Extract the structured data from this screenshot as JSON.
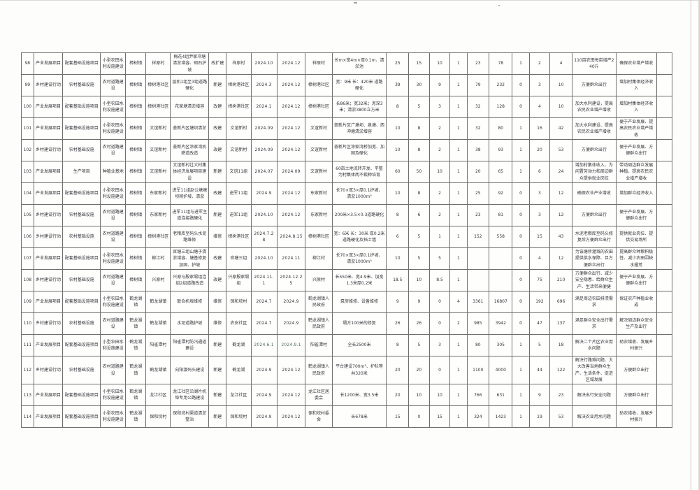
{
  "document": {
    "kind": "scanned-project-schedule-table",
    "visible_row_range": "98-114",
    "page_background": "#fdfdfc",
    "ink_color": "#34343a",
    "grid_color": "#6f6f6d"
  },
  "table": {
    "col_names": [
      "col-no",
      "col-project-type",
      "col-project-category",
      "col-construction-type",
      "col-town",
      "col-village",
      "col-construction-content",
      "col-build-nature",
      "col-location",
      "col-start-date",
      "col-end-date",
      "col-implementing-unit",
      "col-scale-spec",
      "col-num-1",
      "col-num-2",
      "col-num-3",
      "col-num-4",
      "col-num-5",
      "col-num-6",
      "col-num-7",
      "col-num-8",
      "col-num-9",
      "col-benefit-1",
      "col-benefit-2",
      "col-remark"
    ],
    "rows": [
      [
        "98",
        "产业发展项目",
        "配套基础设施项目",
        "小型农田水利设施建设",
        "樟树镇",
        "祥原村",
        "梅花4组尹家冲塘清淤增容、砌石护坡",
        "改扩建",
        "祥原村",
        "2024.10",
        "2024.12",
        "祥原村",
        "长m×宽4m×厚0.1m、清淤池",
        "25",
        "15",
        "10",
        "1",
        "23",
        "78",
        "1",
        "2",
        "4",
        "110亩农田每亩增产240斤",
        "确保农业增产增收",
        ""
      ],
      [
        "99",
        "乡村建设行动",
        "农村基础设施",
        "农村道路建设",
        "樟树镇",
        "樟树港社区",
        "层机1组至3组道路硬化",
        "新建",
        "樟树港社区",
        "2024.3",
        "2024.12",
        "樟树港社区",
        "宽：9米 长：420米 道路硬化",
        "39",
        "30",
        "9",
        "1",
        "79",
        "232",
        "0",
        "3",
        "10",
        "方便群众出行",
        "增加村集体经济收入",
        ""
      ],
      [
        "100",
        "产业发展项目",
        "配套基础设施项目",
        "小型农田水利设施建设",
        "樟树镇",
        "樟树港社区",
        "花家塘清淤增容",
        "改建",
        "樟树港社区",
        "2024.1",
        "2024.12",
        "樟树港社区",
        "长86米；宽32米；泥深3米；清淤3800立方米",
        "8",
        "5",
        "3",
        "1",
        "32",
        "128",
        "0",
        "4",
        "10",
        "加大水利建设，提高农民农业增产增收",
        "增加村集体经济收入",
        ""
      ],
      [
        "101",
        "产业发展项目",
        "配套基础设施项目",
        "小型农田水利设施建设",
        "樟树镇",
        "文谊新村",
        "荟新片区塘坝清淤",
        "改建",
        "文谊新村",
        "2024.09",
        "2024.12",
        "文谊新村",
        "荟新片区广塘坝、泉塘、西冲塘清淤增容",
        "10",
        "8",
        "2",
        "1",
        "32",
        "80",
        "1",
        "16",
        "42",
        "加大水利建设、提高农民农业增产增收",
        "便于产业发展、提高农民农业增产增收",
        ""
      ],
      [
        "102",
        "乡村建设行动",
        "农村基础设施",
        "农村道路建设",
        "樟树镇",
        "文谊新村",
        "荟新片区涂家湾机耕道改造",
        "改建",
        "文谊新村",
        "2024.09",
        "2024.12",
        "文谊新村",
        "荟新片区涂家湾桥加宽、加固及硬化",
        "10",
        "8",
        "2",
        "1",
        "38",
        "93",
        "1",
        "20",
        "53",
        "方便群众出行",
        "便于产业发展、方便群众出行",
        ""
      ],
      [
        "103",
        "产业发展项目",
        "生产项目",
        "种植业基地",
        "樟树镇",
        "文谊新村",
        "文谊新村壮大村集体经济发展项目建设",
        "新建",
        "文谊11组",
        "2024.07",
        "2024.09",
        "文谊新村",
        "60亩土地流转开发、平整为村集体两不栽种培育",
        "60",
        "50",
        "10",
        "1",
        "20",
        "65",
        "1",
        "6",
        "24",
        "增加村集体收入、为闲置劳动力和周边群众提供就业岗位",
        "带动周边群众发展种植、提高农民农业增产增收",
        ""
      ],
      [
        "104",
        "产业发展项目",
        "配套基础设施项目",
        "小型农田水利设施建设",
        "樟树镇",
        "东家新村",
        "进军11组赵公塘塘坝砌护坡、清淤",
        "改建",
        "进军11组",
        "2024.9",
        "2024.12",
        "东家新村",
        "长70×宽3×厚0.1护坡、清淤1000m³",
        "10",
        "8",
        "2",
        "1",
        "25",
        "92",
        "0",
        "3",
        "12",
        "确保农业产业增收",
        "增加群众经济收入",
        ""
      ],
      [
        "105",
        "乡村建设行动",
        "农村基础设施",
        "农村道路建设",
        "樟树镇",
        "东家新村",
        "进军11组与进军主道连接路硬化",
        "新建",
        "进军11组",
        "2024.10",
        "2024.12",
        "东家新村",
        "200米×3.5×0.3道路硬化",
        "8",
        "6",
        "2",
        "1",
        "23",
        "81",
        "0",
        "3",
        "12",
        "方便群众出行",
        "便于产业发展、方便群众出行",
        ""
      ],
      [
        "106",
        "乡村建设行动",
        "农村基础设施",
        "农村道路建设",
        "樟树镇",
        "樟树港社区",
        "老粮库至码头水泥路维修",
        "维修",
        "樟树港社区",
        "2024.7.28",
        "2024.8.15",
        "樟树港社区",
        "宽：6米 长：30米 厚0.2米道路硬化及挡土墙",
        "6",
        "5",
        "1",
        "1",
        "152",
        "558",
        "0",
        "15",
        "43",
        "水泥老粮库至码头修复后方便群众出行",
        "提供就业岗位、提供交易场所",
        ""
      ],
      [
        "107",
        "产业发展项目",
        "配套基础设施项目",
        "小型农田水利设施建设",
        "樟树镇",
        "柳江村",
        "官塘三组山塘子清淤增容、塘基修复加固、护坡",
        "改建",
        "官塘三组",
        "2024.10",
        "2024.11",
        "柳江村",
        "长70×宽3×厚0.1护坡、清淤1000m³",
        "10",
        "5",
        "5",
        "1",
        "",
        "",
        "0",
        "4",
        "12",
        "为该塘所灌溉的农田提供供水保障、且方便群众出行",
        "提高群众种粮积极性、减少农田因缺水撂荒",
        ""
      ],
      [
        "108",
        "乡村建设行动",
        "农村基础设施",
        "农村道路建设",
        "樟树镇",
        "兴原村",
        "兴原与殷家塅组连组2组道路改造",
        "改建",
        "兴原殷家塅组",
        "2024.11.1",
        "2024.12.25",
        "兴原村",
        "长550米、宽4.9米、加宽1.3米厚0.2米",
        "18.5",
        "10",
        "8.5",
        "1",
        "",
        "",
        "0",
        "75",
        "210",
        "方便群众出行、减少安全隐患、给群众生产、生活带来便捷",
        "便于产业发展、方便群众出行",
        ""
      ],
      [
        "109",
        "产业发展项目",
        "配套基础设施项目",
        "小型农田水利设施建设",
        "鹤龙湖镇",
        "鹤龙湖镇",
        "联合机埠维修",
        "维修",
        "保和垸村",
        "2024.7",
        "2024.9",
        "鹤龙湖镇人民政府",
        "泵房维修、设备维修",
        "9",
        "9",
        "0",
        "4",
        "3361",
        "16807",
        "0",
        "192",
        "696",
        "满足周边农田排渍需求",
        "保证农产种植业收成",
        ""
      ],
      [
        "110",
        "乡村建设行动",
        "农村基础设施",
        "农村道路建设",
        "鹤龙湖镇",
        "鹤龙湖镇",
        "水泥道路护坡",
        "维修",
        "农安社区",
        "2024.7",
        "2024.9",
        "鹤龙湖镇人民政府",
        "塌方100米的修复",
        "26",
        "26",
        "0",
        "2",
        "985",
        "3942",
        "0",
        "47",
        "137",
        "满足群众安全出行需求",
        "解决周边群众安全生产及出行",
        ""
      ],
      [
        "111",
        "产业发展项目",
        "配套基础设施项目",
        "小型农田水利设施建设",
        "鹤龙湖镇",
        "阳雀潭村",
        "阳雀潭村防汛通道建设",
        "新建",
        "鹤龙湖",
        "2024.6.1",
        "2024.9.1",
        "阳雀潭村",
        "全长2500米",
        "8",
        "5",
        "3",
        "1",
        "80",
        "305",
        "1",
        "5",
        "18",
        "解决二个片区农业用水问题",
        "助农增收、发展乡村振兴",
        ""
      ],
      [
        "112",
        "乡村建设行动",
        "农村基础设施",
        "农村道路建设",
        "鹤龙湖镇",
        "鹤龙湖镇",
        "向阳渡码头建设",
        "新建",
        "鹤龙湖",
        "2024.9",
        "2024.12",
        "鹤龙湖镇人民政府",
        "平台建设700m²、护栏等共320米",
        "20",
        "20",
        "0",
        "1",
        "1100",
        "4000",
        "1",
        "44",
        "122",
        "解决行路难问题、大大改善当地群众生产、生活条件、促进区域发展",
        "方便群众出行",
        ""
      ],
      [
        "113",
        "产业发展项目",
        "配套基础设施项目",
        "小型农田水利设施建设",
        "鹤龙湖镇",
        "龙江社区",
        "龙江社区沿湖片机埠专用公路建设",
        "新建",
        "龙江社区",
        "2024.9",
        "2024.12",
        "龙江社区居委会",
        "长1200米、宽3.5米",
        "20",
        "10",
        "10",
        "1",
        "766",
        "631",
        "1",
        "9",
        "23",
        "解决出行安全问题",
        "方便群众出行",
        ""
      ],
      [
        "114",
        "产业发展项目",
        "配套基础设施项目",
        "小型农田水利设施建设",
        "鹤龙湖镇",
        "保和垸村",
        "保和垸村渠道清淤整治",
        "新建",
        "保和垸村",
        "2024.9",
        "2024.12",
        "保和垸村委会",
        "长678米",
        "15",
        "0",
        "15",
        "1",
        "324",
        "1423",
        "1",
        "19",
        "53",
        "解决农业用水问题",
        "助农增收、发展乡村振兴",
        ""
      ]
    ],
    "greenish_date_rows": [
      13
    ]
  }
}
